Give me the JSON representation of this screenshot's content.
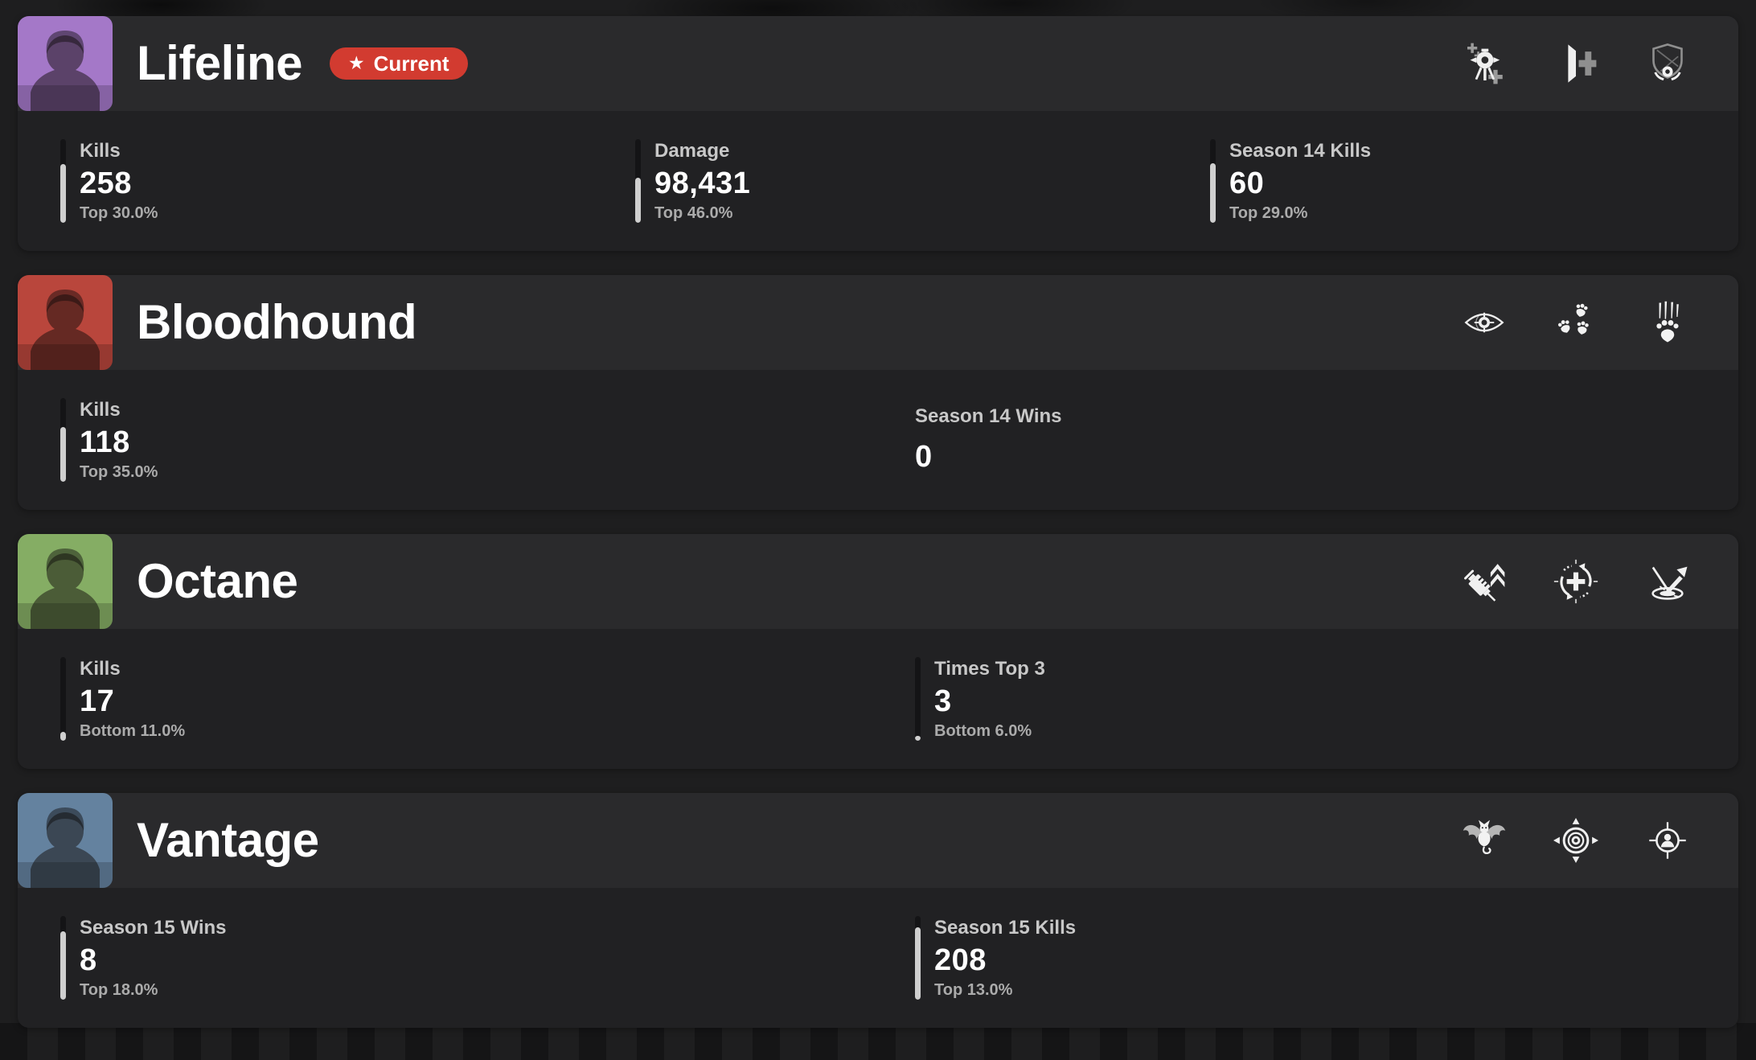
{
  "cards": [
    {
      "name": "Lifeline",
      "badge": {
        "star": "★",
        "label": "Current",
        "color": "#d23b30",
        "icon": "star-icon"
      },
      "portrait": {
        "icon": "lifeline-portrait",
        "bg": "#a478c8"
      },
      "abilities": [
        {
          "icon": "heal-drone-icon"
        },
        {
          "icon": "combat-revive-icon"
        },
        {
          "icon": "care-package-icon"
        }
      ],
      "columns": 3,
      "stats": [
        {
          "label": "Kills",
          "value": "258",
          "percentile": "Top 30.0%",
          "bar_fill_pct": 70
        },
        {
          "label": "Damage",
          "value": "98,431",
          "percentile": "Top 46.0%",
          "bar_fill_pct": 54
        },
        {
          "label": "Season 14 Kills",
          "value": "60",
          "percentile": "Top 29.0%",
          "bar_fill_pct": 71
        }
      ]
    },
    {
      "name": "Bloodhound",
      "badge": null,
      "portrait": {
        "icon": "bloodhound-portrait",
        "bg": "#b9463c"
      },
      "abilities": [
        {
          "icon": "eye-of-allfather-icon"
        },
        {
          "icon": "tracker-paws-icon"
        },
        {
          "icon": "beast-of-hunt-icon"
        }
      ],
      "columns": 2,
      "stats": [
        {
          "label": "Kills",
          "value": "118",
          "percentile": "Top 35.0%",
          "bar_fill_pct": 65
        },
        {
          "label": "Season 14 Wins",
          "value": "0",
          "percentile": null,
          "bar_fill_pct": null
        }
      ]
    },
    {
      "name": "Octane",
      "badge": null,
      "portrait": {
        "icon": "octane-portrait",
        "bg": "#85ad64"
      },
      "abilities": [
        {
          "icon": "stim-icon"
        },
        {
          "icon": "swift-mend-icon"
        },
        {
          "icon": "launch-pad-icon"
        }
      ],
      "columns": 2,
      "stats": [
        {
          "label": "Kills",
          "value": "17",
          "percentile": "Bottom 11.0%",
          "bar_fill_pct": 11
        },
        {
          "label": "Times Top 3",
          "value": "3",
          "percentile": "Bottom 6.0%",
          "bar_fill_pct": 6
        }
      ]
    },
    {
      "name": "Vantage",
      "badge": null,
      "portrait": {
        "icon": "vantage-portrait",
        "bg": "#64829f"
      },
      "abilities": [
        {
          "icon": "echo-bat-icon"
        },
        {
          "icon": "spotters-lens-icon"
        },
        {
          "icon": "snipers-mark-icon"
        }
      ],
      "columns": 2,
      "stats": [
        {
          "label": "Season 15 Wins",
          "value": "8",
          "percentile": "Top 18.0%",
          "bar_fill_pct": 82
        },
        {
          "label": "Season 15 Kills",
          "value": "208",
          "percentile": "Top 13.0%",
          "bar_fill_pct": 87
        }
      ]
    }
  ],
  "colors": {
    "badge_red": "#d23b30",
    "card_header_bg": "#2a2a2c",
    "card_body_bg": "#212123",
    "bar_fill": "#cfcfcf",
    "bar_track": "#141416"
  }
}
